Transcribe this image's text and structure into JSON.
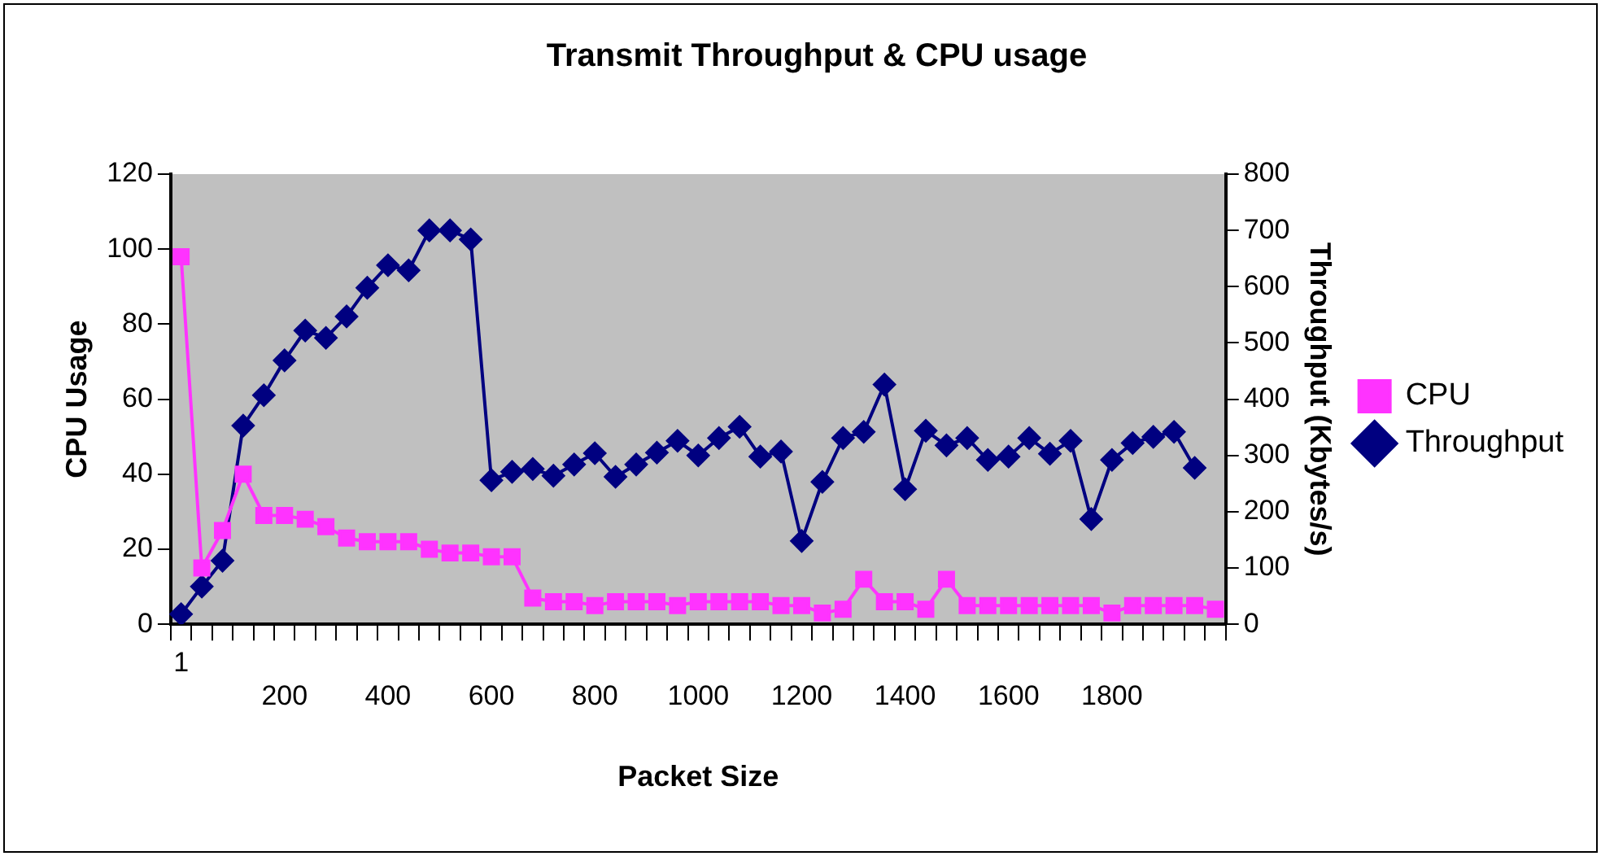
{
  "chart_data": {
    "type": "line",
    "title": "Transmit Throughput & CPU usage",
    "xlabel": "Packet Size",
    "ylabel": "CPU Usage",
    "y2label": "Throughput (Kbytes/s)",
    "categories": [
      "1",
      null,
      null,
      null,
      null,
      "200",
      null,
      null,
      null,
      null,
      "400",
      null,
      null,
      null,
      null,
      "600",
      null,
      null,
      null,
      null,
      "800",
      null,
      null,
      null,
      null,
      "1000",
      null,
      null,
      null,
      null,
      "1200",
      null,
      null,
      null,
      null,
      "1400",
      null,
      null,
      null,
      null,
      "1600",
      null,
      null,
      null,
      null,
      "1800",
      null,
      null,
      null,
      null,
      null
    ],
    "series": [
      {
        "name": "CPU",
        "color": "#ff33ff",
        "marker": "square",
        "values": [
          98,
          15,
          25,
          40,
          29,
          29,
          28,
          26,
          23,
          22,
          22,
          22,
          20,
          19,
          19,
          18,
          18,
          7,
          6,
          6,
          5,
          6,
          6,
          6,
          5,
          6,
          6,
          6,
          6,
          5,
          5,
          3,
          4,
          12,
          6,
          6,
          4,
          12,
          5,
          5,
          5,
          5,
          5,
          5,
          5,
          3,
          5,
          5,
          5,
          5,
          4
        ]
      },
      {
        "name": "Throughput",
        "color": "#000080",
        "marker": "diamond",
        "axis": "y2",
        "values": [
          18,
          67,
          113,
          353,
          407,
          469,
          522,
          509,
          547,
          598,
          638,
          629,
          700,
          700,
          684,
          256,
          271,
          276,
          264,
          284,
          304,
          262,
          284,
          305,
          326,
          300,
          331,
          351,
          298,
          307,
          148,
          253,
          331,
          342,
          426,
          240,
          344,
          318,
          331,
          292,
          298,
          331,
          303,
          326,
          187,
          292,
          322,
          333,
          342,
          278,
          null
        ]
      }
    ],
    "ylim": [
      0,
      120
    ],
    "yticks": [
      0,
      20,
      40,
      60,
      80,
      100,
      120
    ],
    "y2lim": [
      0,
      800
    ],
    "y2ticks": [
      0,
      100,
      200,
      300,
      400,
      500,
      600,
      700,
      800
    ],
    "grid": false,
    "legend": "right"
  }
}
